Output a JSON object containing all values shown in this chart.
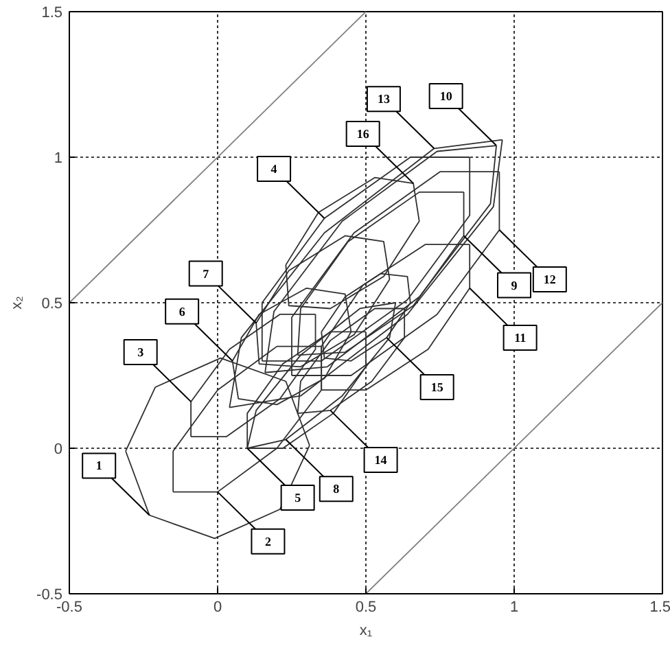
{
  "chart_data": {
    "type": "line",
    "xlabel": "x₁",
    "ylabel": "x₂",
    "xlim": [
      -0.5,
      1.5
    ],
    "ylim": [
      -0.5,
      1.5
    ],
    "xticks": [
      -0.5,
      0,
      0.5,
      1,
      1.5
    ],
    "yticks": [
      -0.5,
      0,
      0.5,
      1,
      1.5
    ],
    "grid": true,
    "series": [
      {
        "color": "#808080",
        "x": [
          -0.5,
          0.5
        ],
        "values": [
          0.5,
          1.5
        ]
      },
      {
        "color": "#808080",
        "x": [
          0.5,
          1.5
        ],
        "values": [
          -0.5,
          0.5
        ]
      },
      {
        "color": "#303030",
        "x": [
          -0.31,
          -0.21,
          0.01,
          0.23,
          0.31
        ],
        "values": [
          -0.01,
          0.21,
          0.31,
          0.23,
          0.01
        ]
      },
      {
        "color": "#303030",
        "x": [
          -0.31,
          -0.23,
          -0.01,
          0.21,
          0.31
        ],
        "values": [
          -0.01,
          -0.23,
          -0.31,
          -0.21,
          0.01
        ]
      },
      {
        "color": "#303030",
        "x": [
          -0.15,
          -0.15,
          0.0,
          0.2,
          0.35
        ],
        "values": [
          -0.15,
          -0.01,
          0.2,
          0.35,
          0.35
        ]
      },
      {
        "color": "#303030",
        "x": [
          -0.15,
          0.0,
          0.2,
          0.35,
          0.35
        ],
        "values": [
          -0.15,
          -0.15,
          0.0,
          0.2,
          0.35
        ]
      },
      {
        "color": "#303030",
        "x": [
          -0.09,
          -0.09,
          0.04,
          0.21,
          0.33
        ],
        "values": [
          0.04,
          0.16,
          0.34,
          0.46,
          0.46
        ]
      },
      {
        "color": "#303030",
        "x": [
          -0.09,
          0.03,
          0.21,
          0.33,
          0.33
        ],
        "values": [
          0.04,
          0.04,
          0.17,
          0.34,
          0.46
        ]
      },
      {
        "color": "#303030",
        "x": [
          0.15,
          0.15,
          0.36,
          0.65,
          0.85
        ],
        "values": [
          0.3,
          0.5,
          0.79,
          1.0,
          1.0
        ]
      },
      {
        "color": "#303030",
        "x": [
          0.15,
          0.35,
          0.64,
          0.85,
          0.85
        ],
        "values": [
          0.3,
          0.3,
          0.51,
          0.8,
          1.0
        ]
      },
      {
        "color": "#303030",
        "x": [
          0.1,
          0.1,
          0.22,
          0.38,
          0.5
        ],
        "values": [
          0.0,
          0.12,
          0.29,
          0.4,
          0.4
        ]
      },
      {
        "color": "#303030",
        "x": [
          0.1,
          0.22,
          0.39,
          0.5,
          0.5
        ],
        "values": [
          0.0,
          0.0,
          0.12,
          0.28,
          0.4
        ]
      },
      {
        "color": "#303030",
        "x": [
          0.05,
          0.14,
          0.3,
          0.43,
          0.45
        ],
        "values": [
          0.3,
          0.46,
          0.55,
          0.53,
          0.4
        ]
      },
      {
        "color": "#303030",
        "x": [
          0.05,
          0.07,
          0.2,
          0.36,
          0.45
        ],
        "values": [
          0.3,
          0.17,
          0.15,
          0.24,
          0.4
        ]
      },
      {
        "color": "#303030",
        "x": [
          0.13,
          0.24,
          0.43,
          0.56,
          0.58
        ],
        "values": [
          0.43,
          0.61,
          0.73,
          0.71,
          0.58
        ]
      },
      {
        "color": "#303030",
        "x": [
          0.13,
          0.14,
          0.28,
          0.46,
          0.58
        ],
        "values": [
          0.43,
          0.29,
          0.28,
          0.39,
          0.58
        ]
      },
      {
        "color": "#303030",
        "x": [
          0.1,
          0.13,
          0.28,
          0.48,
          0.6
        ],
        "values": [
          0.0,
          0.13,
          0.32,
          0.48,
          0.5
        ]
      },
      {
        "color": "#303030",
        "x": [
          0.1,
          0.23,
          0.42,
          0.58,
          0.6
        ],
        "values": [
          0.0,
          0.03,
          0.18,
          0.38,
          0.5
        ]
      },
      {
        "color": "#303030",
        "x": [
          0.27,
          0.28,
          0.44,
          0.68,
          0.83
        ],
        "values": [
          0.32,
          0.48,
          0.71,
          0.88,
          0.88
        ]
      },
      {
        "color": "#303030",
        "x": [
          0.27,
          0.43,
          0.66,
          0.83,
          0.83
        ],
        "values": [
          0.32,
          0.33,
          0.49,
          0.73,
          0.88
        ]
      },
      {
        "color": "#303030",
        "x": [
          0.16,
          0.19,
          0.42,
          0.74,
          0.94
        ],
        "values": [
          0.26,
          0.47,
          0.78,
          1.02,
          1.04
        ]
      },
      {
        "color": "#303030",
        "x": [
          0.16,
          0.37,
          0.68,
          0.92,
          0.94
        ],
        "values": [
          0.26,
          0.28,
          0.52,
          0.84,
          1.04
        ]
      },
      {
        "color": "#303030",
        "x": [
          0.35,
          0.35,
          0.49,
          0.7,
          0.85
        ],
        "values": [
          0.2,
          0.35,
          0.56,
          0.7,
          0.7
        ]
      },
      {
        "color": "#303030",
        "x": [
          0.35,
          0.5,
          0.71,
          0.85,
          0.85
        ],
        "values": [
          0.2,
          0.2,
          0.34,
          0.55,
          0.7
        ]
      },
      {
        "color": "#303030",
        "x": [
          0.25,
          0.25,
          0.46,
          0.75,
          0.95
        ],
        "values": [
          0.25,
          0.45,
          0.74,
          0.95,
          0.95
        ]
      },
      {
        "color": "#303030",
        "x": [
          0.25,
          0.45,
          0.74,
          0.95,
          0.95
        ],
        "values": [
          0.25,
          0.25,
          0.46,
          0.75,
          0.95
        ]
      },
      {
        "color": "#303030",
        "x": [
          0.04,
          0.08,
          0.36,
          0.73,
          0.96
        ],
        "values": [
          0.14,
          0.38,
          0.74,
          1.03,
          1.06
        ]
      },
      {
        "color": "#303030",
        "x": [
          0.04,
          0.28,
          0.64,
          0.93,
          0.96
        ],
        "values": [
          0.14,
          0.18,
          0.46,
          0.83,
          1.06
        ]
      },
      {
        "color": "#303030",
        "x": [
          0.27,
          0.28,
          0.38,
          0.53,
          0.63
        ],
        "values": [
          0.12,
          0.23,
          0.37,
          0.48,
          0.48
        ]
      },
      {
        "color": "#303030",
        "x": [
          0.27,
          0.38,
          0.52,
          0.63,
          0.63
        ],
        "values": [
          0.12,
          0.13,
          0.23,
          0.38,
          0.48
        ]
      },
      {
        "color": "#303030",
        "x": [
          0.35,
          0.43,
          0.55,
          0.64,
          0.65
        ],
        "values": [
          0.4,
          0.52,
          0.6,
          0.59,
          0.5
        ]
      },
      {
        "color": "#303030",
        "x": [
          0.35,
          0.36,
          0.45,
          0.57,
          0.65
        ],
        "values": [
          0.4,
          0.31,
          0.3,
          0.38,
          0.5
        ]
      },
      {
        "color": "#303030",
        "x": [
          0.23,
          0.34,
          0.53,
          0.66,
          0.68
        ],
        "values": [
          0.63,
          0.81,
          0.93,
          0.91,
          0.78
        ]
      },
      {
        "color": "#303030",
        "x": [
          0.23,
          0.24,
          0.38,
          0.56,
          0.68
        ],
        "values": [
          0.63,
          0.49,
          0.48,
          0.59,
          0.78
        ]
      }
    ],
    "annotations": [
      {
        "text": "1",
        "x": -0.23,
        "y": -0.23
      },
      {
        "text": "2",
        "x": 0.0,
        "y": -0.15
      },
      {
        "text": "3",
        "x": -0.09,
        "y": 0.16
      },
      {
        "text": "4",
        "x": 0.36,
        "y": 0.79
      },
      {
        "text": "5",
        "x": 0.1,
        "y": 0.0
      },
      {
        "text": "6",
        "x": 0.05,
        "y": 0.3
      },
      {
        "text": "7",
        "x": 0.13,
        "y": 0.43
      },
      {
        "text": "8",
        "x": 0.23,
        "y": 0.03
      },
      {
        "text": "9",
        "x": 0.83,
        "y": 0.73
      },
      {
        "text": "10",
        "x": 0.94,
        "y": 1.04
      },
      {
        "text": "11",
        "x": 0.85,
        "y": 0.55
      },
      {
        "text": "12",
        "x": 0.95,
        "y": 0.75
      },
      {
        "text": "13",
        "x": 0.73,
        "y": 1.03
      },
      {
        "text": "14",
        "x": 0.38,
        "y": 0.13
      },
      {
        "text": "15",
        "x": 0.57,
        "y": 0.38
      },
      {
        "text": "16",
        "x": 0.66,
        "y": 0.91
      }
    ]
  }
}
